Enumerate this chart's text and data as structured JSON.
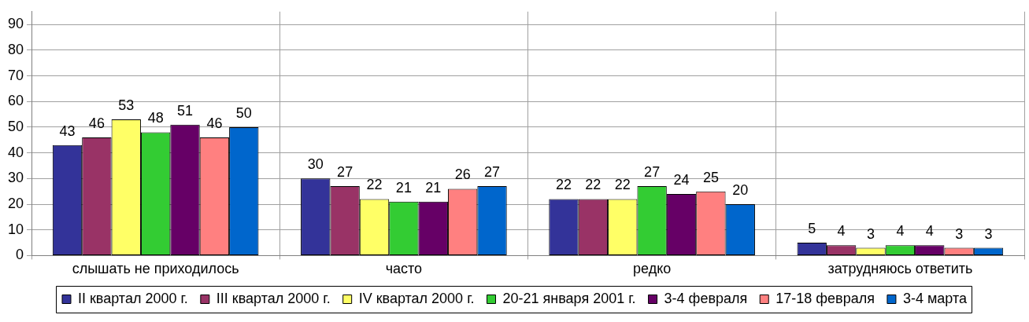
{
  "chart_data": {
    "type": "bar",
    "categories": [
      "слышать не приходилось",
      "часто",
      "редко",
      "затрудняюсь ответить"
    ],
    "series": [
      {
        "name": "II квартал 2000 г.",
        "color": "#333399",
        "values": [
          43,
          30,
          22,
          5
        ]
      },
      {
        "name": "III квартал 2000 г.",
        "color": "#993366",
        "values": [
          46,
          27,
          22,
          4
        ]
      },
      {
        "name": "IV квартал 2000 г.",
        "color": "#ffff66",
        "values": [
          53,
          22,
          22,
          3
        ]
      },
      {
        "name": "20-21 января 2001 г.",
        "color": "#33cc33",
        "values": [
          48,
          21,
          27,
          4
        ]
      },
      {
        "name": "3-4 февраля",
        "color": "#660066",
        "values": [
          51,
          21,
          24,
          4
        ]
      },
      {
        "name": "17-18 февраля",
        "color": "#ff8080",
        "values": [
          46,
          26,
          25,
          3
        ]
      },
      {
        "name": "3-4 марта",
        "color": "#0066cc",
        "values": [
          50,
          27,
          20,
          3
        ]
      }
    ],
    "ylim": [
      0,
      95
    ],
    "yticks": [
      0,
      10,
      20,
      30,
      40,
      50,
      60,
      70,
      80,
      90
    ],
    "grid": true,
    "legend": "bottom",
    "data_labels": true
  }
}
